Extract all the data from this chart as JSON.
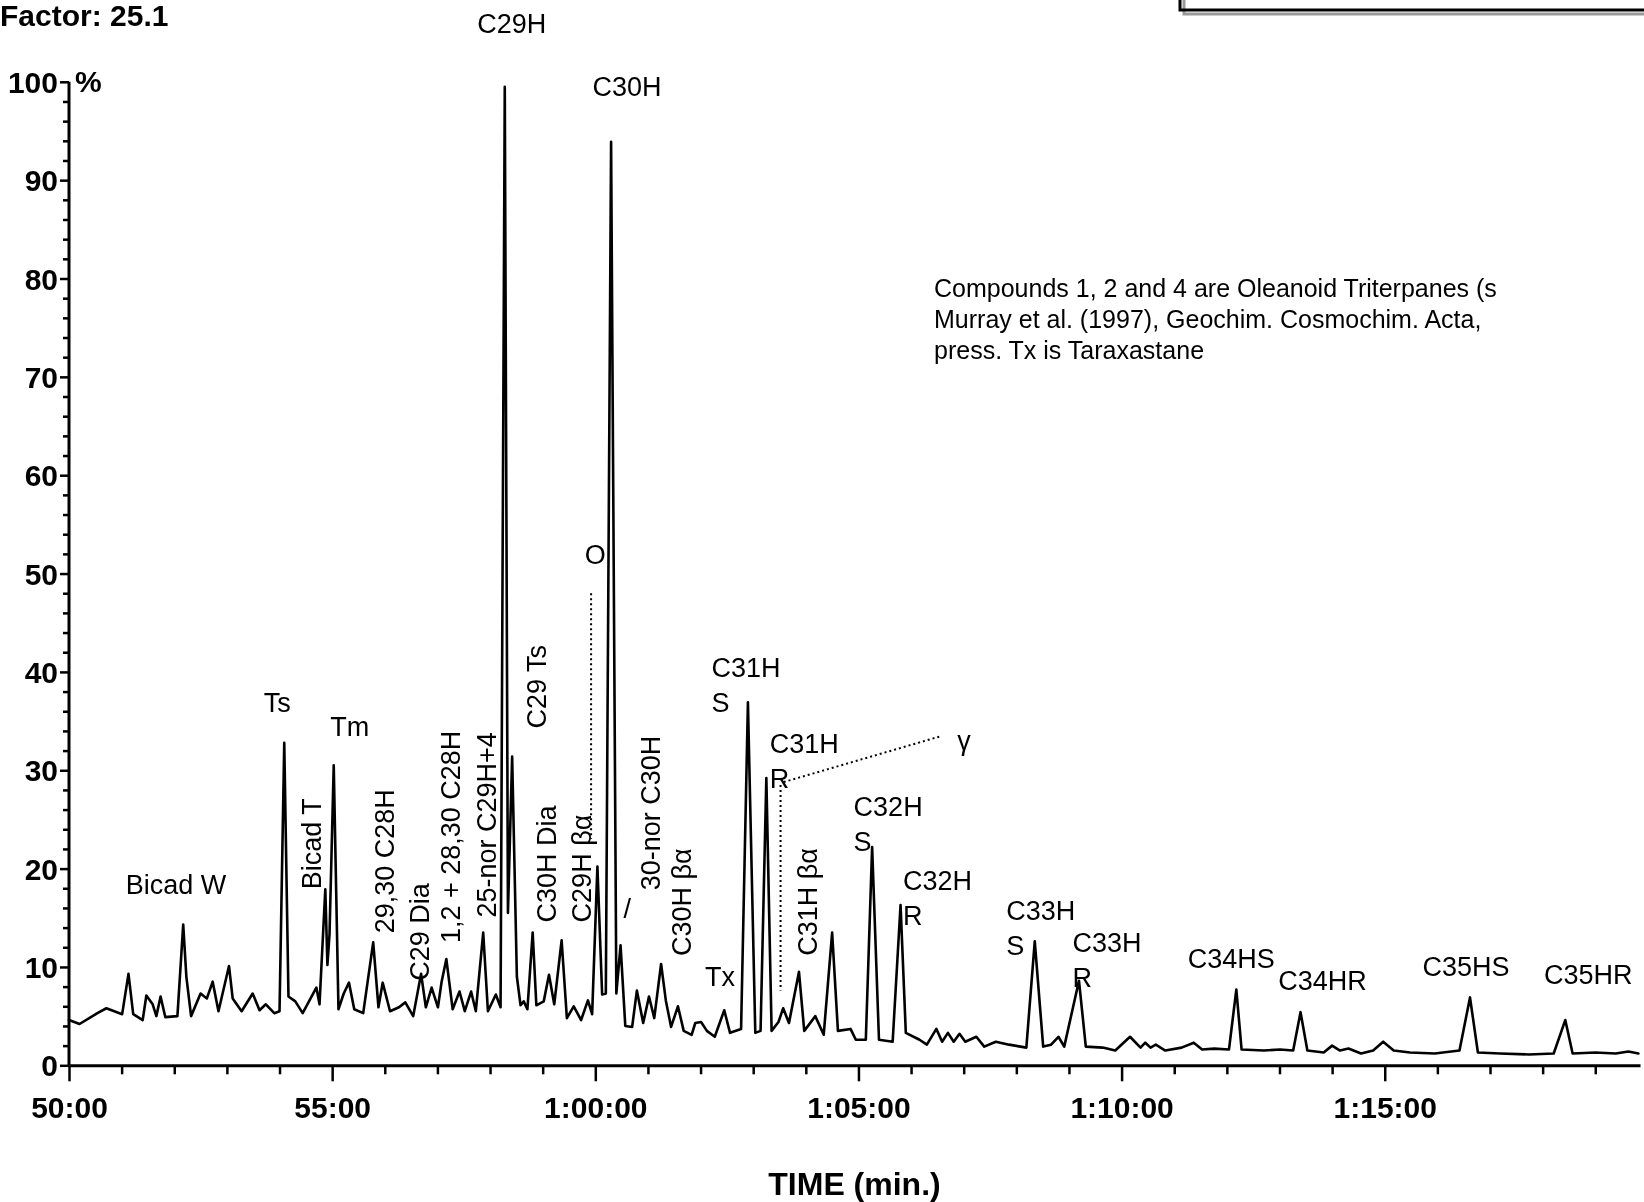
{
  "chart_data": {
    "type": "line",
    "title": "Factor: 25.1",
    "xlabel": "TIME (min.)",
    "ylabel": "%",
    "xlim": [
      50,
      79.85
    ],
    "ylim": [
      0,
      100
    ],
    "xticks": [
      {
        "value": 50,
        "label": "50:00"
      },
      {
        "value": 51,
        "label": null
      },
      {
        "value": 52,
        "label": null
      },
      {
        "value": 53,
        "label": null
      },
      {
        "value": 54,
        "label": null
      },
      {
        "value": 55,
        "label": "55:00"
      },
      {
        "value": 56,
        "label": null
      },
      {
        "value": 57,
        "label": null
      },
      {
        "value": 58,
        "label": null
      },
      {
        "value": 59,
        "label": null
      },
      {
        "value": 60,
        "label": "1:00:00"
      },
      {
        "value": 61,
        "label": null
      },
      {
        "value": 62,
        "label": null
      },
      {
        "value": 63,
        "label": null
      },
      {
        "value": 64,
        "label": null
      },
      {
        "value": 65,
        "label": "1:05:00"
      },
      {
        "value": 66,
        "label": null
      },
      {
        "value": 67,
        "label": null
      },
      {
        "value": 68,
        "label": null
      },
      {
        "value": 69,
        "label": null
      },
      {
        "value": 70,
        "label": "1:10:00"
      },
      {
        "value": 71,
        "label": null
      },
      {
        "value": 72,
        "label": null
      },
      {
        "value": 73,
        "label": null
      },
      {
        "value": 74,
        "label": null
      },
      {
        "value": 75,
        "label": "1:15:00"
      },
      {
        "value": 76,
        "label": null
      },
      {
        "value": 77,
        "label": null
      },
      {
        "value": 78,
        "label": null
      },
      {
        "value": 79,
        "label": null
      }
    ],
    "yticks": [
      0,
      {
        "value": 2,
        "label": null
      },
      {
        "value": 4,
        "label": null
      },
      {
        "value": 6,
        "label": null
      },
      {
        "value": 8,
        "label": null
      },
      10,
      {
        "value": 12,
        "label": null
      },
      {
        "value": 14,
        "label": null
      },
      {
        "value": 16,
        "label": null
      },
      {
        "value": 18,
        "label": null
      },
      20,
      {
        "value": 22,
        "label": null
      },
      {
        "value": 24,
        "label": null
      },
      {
        "value": 26,
        "label": null
      },
      {
        "value": 28,
        "label": null
      },
      30,
      {
        "value": 32,
        "label": null
      },
      {
        "value": 34,
        "label": null
      },
      {
        "value": 36,
        "label": null
      },
      {
        "value": 38,
        "label": null
      },
      40,
      {
        "value": 42,
        "label": null
      },
      {
        "value": 44,
        "label": null
      },
      {
        "value": 46,
        "label": null
      },
      {
        "value": 48,
        "label": null
      },
      50,
      {
        "value": 52,
        "label": null
      },
      {
        "value": 54,
        "label": null
      },
      {
        "value": 56,
        "label": null
      },
      {
        "value": 58,
        "label": null
      },
      60,
      {
        "value": 62,
        "label": null
      },
      {
        "value": 64,
        "label": null
      },
      {
        "value": 66,
        "label": null
      },
      {
        "value": 68,
        "label": null
      },
      70,
      {
        "value": 72,
        "label": null
      },
      {
        "value": 74,
        "label": null
      },
      {
        "value": 76,
        "label": null
      },
      {
        "value": 78,
        "label": null
      },
      80,
      {
        "value": 82,
        "label": null
      },
      {
        "value": 84,
        "label": null
      },
      {
        "value": 86,
        "label": null
      },
      {
        "value": 88,
        "label": null
      },
      90,
      {
        "value": 92,
        "label": null
      },
      {
        "value": 94,
        "label": null
      },
      {
        "value": 96,
        "label": null
      },
      {
        "value": 98,
        "label": null
      },
      100
    ],
    "marker": "none",
    "line_style": "solid",
    "series": [
      {
        "color": "#000000",
        "x": [
          50.0,
          50.2,
          50.54,
          50.71,
          51.01,
          51.13,
          51.22,
          51.4,
          51.47,
          51.59,
          51.66,
          51.74,
          51.83,
          52.06,
          52.17,
          52.23,
          52.32,
          52.5,
          52.62,
          52.73,
          52.84,
          53.04,
          53.11,
          53.28,
          53.49,
          53.62,
          53.74,
          53.9,
          54.0,
          54.09,
          54.17,
          54.3,
          54.44,
          54.58,
          54.7,
          54.76,
          54.87,
          54.91,
          54.95,
          55.03,
          55.12,
          55.22,
          55.32,
          55.42,
          55.59,
          55.78,
          55.88,
          55.96,
          56.1,
          56.27,
          56.39,
          56.54,
          56.69,
          56.78,
          56.89,
          57.01,
          57.08,
          57.17,
          57.29,
          57.42,
          57.52,
          57.64,
          57.73,
          57.87,
          57.96,
          58.11,
          58.2,
          58.28,
          58.34,
          58.42,
          58.51,
          58.58,
          58.64,
          58.71,
          58.81,
          58.88,
          59.02,
          59.12,
          59.22,
          59.36,
          59.46,
          59.59,
          59.73,
          59.86,
          59.94,
          60.04,
          60.13,
          60.2,
          60.3,
          60.4,
          60.48,
          60.57,
          60.7,
          60.79,
          60.91,
          61.02,
          61.12,
          61.25,
          61.34,
          61.44,
          61.57,
          61.68,
          61.83,
          61.9,
          62.01,
          62.12,
          62.27,
          62.45,
          62.56,
          62.77,
          62.9,
          63.04,
          63.14,
          63.25,
          63.35,
          63.48,
          63.57,
          63.68,
          63.87,
          63.97,
          64.18,
          64.34,
          64.5,
          64.61,
          64.85,
          64.95,
          65.14,
          65.26,
          65.39,
          65.65,
          65.8,
          65.9,
          66.16,
          66.3,
          66.48,
          66.59,
          66.7,
          66.81,
          66.92,
          67.03,
          67.24,
          67.39,
          67.61,
          67.86,
          68.19,
          68.35,
          68.51,
          68.66,
          68.8,
          68.91,
          69.19,
          69.32,
          69.64,
          69.88,
          70.16,
          70.36,
          70.45,
          70.55,
          70.65,
          70.83,
          71.14,
          71.37,
          71.53,
          71.76,
          72.04,
          72.18,
          72.28,
          72.7,
          73.01,
          73.26,
          73.4,
          73.53,
          73.84,
          74.0,
          74.15,
          74.31,
          74.55,
          74.78,
          74.97,
          75.17,
          75.48,
          75.95,
          76.42,
          76.62,
          76.77,
          77.19,
          77.74,
          78.21,
          78.43,
          78.57,
          79.0,
          79.39,
          79.63,
          79.82
        ],
        "values": [
          4.6,
          4.2,
          5.3,
          5.8,
          5.2,
          9.3,
          5.2,
          4.6,
          7.1,
          6.2,
          5.0,
          7.0,
          4.9,
          5.0,
          14.3,
          9.0,
          5.0,
          7.3,
          6.8,
          8.5,
          5.5,
          10.1,
          6.8,
          5.5,
          7.3,
          5.6,
          6.2,
          5.3,
          5.5,
          32.8,
          7.0,
          6.5,
          5.3,
          6.7,
          7.9,
          6.2,
          17.9,
          10.2,
          13.3,
          30.5,
          5.7,
          7.3,
          8.4,
          5.7,
          5.3,
          12.5,
          5.9,
          8.4,
          5.5,
          5.9,
          6.4,
          5.0,
          9.3,
          5.9,
          7.9,
          5.9,
          8.5,
          10.8,
          5.7,
          7.5,
          5.5,
          7.5,
          5.5,
          13.5,
          5.5,
          7.2,
          5.9,
          99.5,
          15.5,
          31.4,
          9.0,
          6.1,
          6.5,
          5.7,
          13.5,
          6.1,
          6.5,
          9.2,
          6.2,
          12.7,
          4.8,
          6.0,
          4.6,
          6.6,
          5.2,
          20.2,
          7.2,
          7.3,
          93.9,
          7.3,
          12.2,
          4.0,
          3.9,
          7.6,
          4.3,
          7.0,
          4.8,
          10.3,
          6.6,
          3.9,
          6.0,
          3.5,
          3.1,
          4.3,
          4.4,
          3.5,
          2.9,
          5.6,
          3.3,
          3.7,
          36.9,
          3.3,
          3.5,
          29.2,
          3.5,
          4.4,
          5.8,
          4.3,
          9.5,
          3.5,
          5.0,
          3.1,
          13.5,
          3.5,
          3.7,
          2.6,
          2.6,
          22.2,
          2.6,
          2.4,
          16.3,
          3.3,
          2.6,
          2.1,
          3.7,
          2.4,
          3.3,
          2.4,
          3.2,
          2.4,
          2.9,
          1.9,
          2.4,
          2.1,
          1.8,
          12.6,
          1.9,
          2.1,
          2.9,
          1.9,
          8.6,
          1.9,
          1.8,
          1.5,
          2.9,
          1.8,
          2.3,
          1.8,
          2.1,
          1.5,
          1.8,
          2.3,
          1.6,
          1.7,
          1.6,
          7.7,
          1.6,
          1.5,
          1.6,
          1.5,
          5.4,
          1.5,
          1.3,
          2.0,
          1.5,
          1.7,
          1.2,
          1.5,
          2.4,
          1.5,
          1.3,
          1.2,
          1.5,
          6.9,
          1.3,
          1.2,
          1.1,
          1.2,
          4.6,
          1.2,
          1.3,
          1.2,
          1.4,
          1.2
        ]
      }
    ],
    "annotations": [
      "Compounds 1, 2 and 4 are Oleanoid Triterpanes (s\nMurray et al. (1997), Geochim. Cosmochim. Acta,\npress. Tx is Taraxastane",
      {
        "text": "Bicad W",
        "x": 52.17,
        "y": 14.3
      },
      {
        "text": "Ts",
        "x": 54.09,
        "y": 32.8
      },
      {
        "text": "Tm",
        "x": 55.03,
        "y": 30.5
      },
      {
        "text": "C29H",
        "x": 58.28,
        "y": 99.5
      },
      {
        "text": "C30H",
        "x": 60.3,
        "y": 93.9
      },
      "O",
      {
        "text": "/",
        "x": 60.48,
        "y": 12.2
      },
      {
        "text": "Tx",
        "x": 62.45,
        "y": 5.6
      },
      {
        "text": "C31H\nS",
        "x": 62.9,
        "y": 36.9
      },
      {
        "text": "C31H\nR",
        "x": 63.25,
        "y": 29.2
      },
      {
        "text": "C32H\nS",
        "x": 65.26,
        "y": 22.2
      },
      {
        "text": "C32H\nR",
        "x": 65.8,
        "y": 16.3
      },
      {
        "text": "C33H\nS",
        "x": 68.35,
        "y": 12.6
      },
      {
        "text": "C33H\nR",
        "x": 69.19,
        "y": 8.6
      },
      {
        "text": "C34HS",
        "x": 72.18,
        "y": 7.7
      },
      {
        "text": "C34HR",
        "x": 73.4,
        "y": 5.4
      },
      {
        "text": "C35HS",
        "x": 76.62,
        "y": 6.9
      },
      {
        "text": "C35HR",
        "x": 78.43,
        "y": 4.6
      },
      "γ",
      {
        "text": "Bicad T",
        "x": 54.87,
        "y": 17.9
      },
      {
        "text": "29,30 C28H",
        "x": 55.78,
        "y": 12.5
      },
      {
        "text": "C29 Dia",
        "x": 56.69,
        "y": 9.3
      },
      {
        "text": "1,2 + 28,30 C28H",
        "x": 57.17,
        "y": 10.8
      },
      {
        "text": "25-nor C29H+4",
        "x": 57.87,
        "y": 13.5
      },
      {
        "text": "C29 Ts",
        "x": 58.42,
        "y": 31.4
      },
      {
        "text": "C30H Dia",
        "x": 58.81,
        "y": 13.5
      },
      {
        "text": "C29H βα",
        "x": 59.36,
        "y": 12.7
      },
      "30-nor C30H",
      {
        "text": "C30H βα",
        "x": 61.25,
        "y": 10.3
      },
      {
        "text": "C31H βα",
        "x": 63.87,
        "y": 9.5
      }
    ]
  }
}
